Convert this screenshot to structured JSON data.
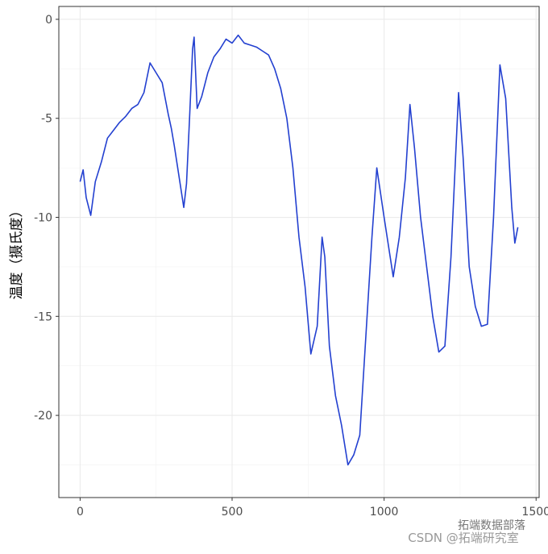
{
  "chart_data": {
    "type": "line",
    "y_label": "温度（摄氏度）",
    "annotations": [
      "拓端数据部落",
      "CSDN @拓端研究室"
    ],
    "x": [
      0,
      10,
      20,
      35,
      50,
      70,
      90,
      110,
      130,
      150,
      170,
      190,
      210,
      230,
      250,
      270,
      290,
      300,
      310,
      320,
      341,
      350,
      360,
      370,
      375,
      385,
      400,
      420,
      440,
      460,
      480,
      500,
      520,
      540,
      560,
      580,
      600,
      620,
      640,
      660,
      680,
      700,
      720,
      740,
      759,
      780,
      796,
      805,
      820,
      840,
      860,
      881,
      900,
      920,
      940,
      960,
      976,
      1000,
      1020,
      1030,
      1050,
      1070,
      1085,
      1100,
      1120,
      1140,
      1160,
      1180,
      1200,
      1220,
      1235,
      1245,
      1260,
      1280,
      1300,
      1320,
      1340,
      1360,
      1381,
      1400,
      1420,
      1430,
      1440
    ],
    "series": [
      {
        "color": "#2340d0",
        "values": [
          -8.2,
          -7.6,
          -9.0,
          -9.9,
          -8.2,
          -7.2,
          -6.0,
          -5.6,
          -5.2,
          -4.9,
          -4.5,
          -4.3,
          -3.7,
          -2.2,
          -2.7,
          -3.2,
          -4.8,
          -5.5,
          -6.4,
          -7.4,
          -9.5,
          -8.3,
          -5.0,
          -1.5,
          -0.9,
          -4.5,
          -3.9,
          -2.7,
          -1.9,
          -1.5,
          -1.0,
          -1.2,
          -0.8,
          -1.2,
          -1.3,
          -1.4,
          -1.6,
          -1.8,
          -2.5,
          -3.5,
          -5.0,
          -7.5,
          -11.0,
          -13.5,
          -16.9,
          -15.5,
          -11.0,
          -12.0,
          -16.5,
          -19.0,
          -20.5,
          -22.5,
          -22.0,
          -21.0,
          -16.0,
          -11.0,
          -7.5,
          -10.0,
          -12.0,
          -13.0,
          -11.0,
          -8.0,
          -4.3,
          -6.5,
          -10.0,
          -12.5,
          -15.0,
          -16.8,
          -16.5,
          -12.0,
          -7.0,
          -3.7,
          -7.0,
          -12.5,
          -14.5,
          -15.5,
          -15.4,
          -10.0,
          -2.3,
          -4.0,
          -9.5,
          -11.3,
          -10.5
        ]
      }
    ],
    "xlim": [
      -70,
      1510
    ],
    "xticks": [
      0,
      500,
      1000,
      1500
    ],
    "xminor": [
      250,
      750,
      1250
    ],
    "ylim": [
      -24.15,
      0.65
    ],
    "yticks": [
      0,
      -5,
      -10,
      -15,
      -20
    ],
    "yminor": [
      -2.5,
      -7.5,
      -12.5,
      -17.5,
      -22.5
    ],
    "grid": true
  }
}
